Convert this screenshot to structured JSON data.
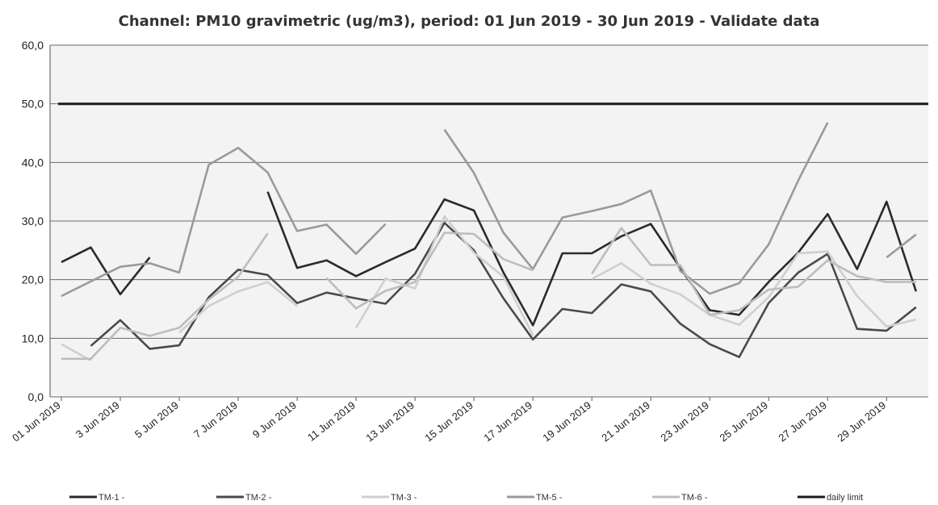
{
  "chart_data": {
    "type": "line",
    "title": "Channel: PM10 gravimetric (ug/m3), period: 01 Jun 2019 - 30 Jun 2019 - Validate data",
    "xlabel": "",
    "ylabel": "",
    "ylim": [
      0,
      60
    ],
    "yticks": [
      "0,0",
      "10,0",
      "20,0",
      "30,0",
      "40,0",
      "50,0",
      "60,0"
    ],
    "grid": true,
    "legend_position": "bottom",
    "x": [
      "01 Jun 2019",
      "02 Jun 2019",
      "03 Jun 2019",
      "04 Jun 2019",
      "05 Jun 2019",
      "06 Jun 2019",
      "07 Jun 2019",
      "08 Jun 2019",
      "09 Jun 2019",
      "10 Jun 2019",
      "11 Jun 2019",
      "12 Jun 2019",
      "13 Jun 2019",
      "14 Jun 2019",
      "15 Jun 2019",
      "16 Jun 2019",
      "17 Jun 2019",
      "18 Jun 2019",
      "19 Jun 2019",
      "20 Jun 2019",
      "21 Jun 2019",
      "22 Jun 2019",
      "23 Jun 2019",
      "24 Jun 2019",
      "25 Jun 2019",
      "26 Jun 2019",
      "27 Jun 2019",
      "28 Jun 2019",
      "29 Jun 2019",
      "30 Jun 2019"
    ],
    "x_tick_labels": [
      "01 Jun 2019",
      "3 Jun 2019",
      "5 Jun 2019",
      "7 Jun 2019",
      "9 Jun 2019",
      "11 Jun 2019",
      "13 Jun 2019",
      "15 Jun 2019",
      "17 Jun 2019",
      "19 Jun 2019",
      "21 Jun 2019",
      "23 Jun 2019",
      "25 Jun 2019",
      "27 Jun 2019",
      "29 Jun 2019"
    ],
    "series": [
      {
        "name": "TM-1 -",
        "color": "#2b2b2b",
        "values": [
          23.0,
          25.5,
          17.5,
          23.8,
          null,
          null,
          null,
          35.0,
          22.0,
          23.3,
          20.6,
          23.0,
          25.3,
          33.7,
          31.8,
          21.2,
          12.2,
          24.5,
          24.5,
          27.4,
          29.5,
          22.0,
          14.8,
          14.0,
          19.6,
          24.6,
          31.2,
          21.8,
          33.3,
          18.0
        ]
      },
      {
        "name": "TM-2 -",
        "color": "#4a4a4a",
        "values": [
          null,
          8.7,
          13.1,
          8.2,
          8.8,
          17.0,
          21.7,
          20.8,
          16.0,
          17.8,
          16.8,
          15.9,
          21.0,
          29.7,
          25.0,
          16.8,
          9.8,
          15.0,
          14.3,
          19.2,
          18.0,
          12.5,
          9.0,
          6.8,
          16.0,
          21.2,
          24.4,
          11.6,
          11.3,
          15.3
        ]
      },
      {
        "name": "TM-3 -",
        "color": "#cfcfcf",
        "values": [
          9.0,
          6.2,
          null,
          null,
          11.0,
          15.5,
          18.0,
          19.6,
          15.5,
          null,
          11.8,
          20.2,
          18.5,
          30.8,
          24.6,
          20.5,
          10.5,
          null,
          20.1,
          22.8,
          19.3,
          17.5,
          14.0,
          12.3,
          17.0,
          24.5,
          24.8,
          17.2,
          12.0,
          13.2
        ]
      },
      {
        "name": "TM-5 -",
        "color": "#9a9a9a",
        "values": [
          17.2,
          19.7,
          22.2,
          22.8,
          21.2,
          39.6,
          42.5,
          38.3,
          28.3,
          29.4,
          24.4,
          29.5,
          null,
          45.6,
          38.2,
          28.0,
          21.8,
          30.6,
          31.7,
          32.9,
          35.2,
          21.5,
          17.6,
          19.4,
          26.0,
          36.9,
          46.8,
          null,
          23.8,
          27.7
        ]
      },
      {
        "name": "TM-6 -",
        "color": "#bdbdbd",
        "values": [
          6.5,
          6.5,
          11.8,
          10.4,
          11.8,
          16.6,
          20.5,
          27.9,
          null,
          20.3,
          15.1,
          18.1,
          19.6,
          28.0,
          27.8,
          23.5,
          21.6,
          null,
          21.0,
          28.8,
          22.5,
          22.5,
          14.0,
          14.8,
          18.3,
          18.8,
          23.3,
          20.6,
          19.6,
          19.6
        ]
      },
      {
        "name": "daily limit",
        "color": "#1a1a1a",
        "values": [
          50.0,
          50.0,
          50.0,
          50.0,
          50.0,
          50.0,
          50.0,
          50.0,
          50.0,
          50.0,
          50.0,
          50.0,
          50.0,
          50.0,
          50.0,
          50.0,
          50.0,
          50.0,
          50.0,
          50.0,
          50.0,
          50.0,
          50.0,
          50.0,
          50.0,
          50.0,
          50.0,
          50.0,
          50.0,
          50.0
        ]
      }
    ]
  }
}
